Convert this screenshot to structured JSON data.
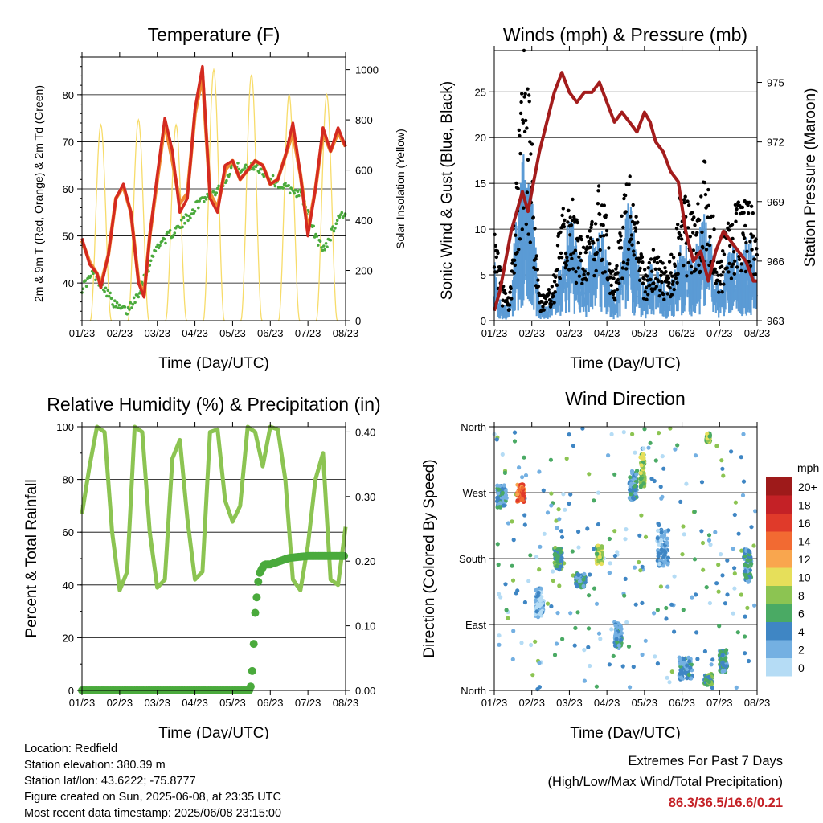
{
  "chart_data": [
    {
      "type": "line",
      "title": "Temperature (F)",
      "xlabel": "Time (Day/UTC)",
      "ylabel": "2m & 9m T (Red, Orange) & 2m Td (Green)",
      "y2label": "Solar Insolation (Yellow)",
      "x_ticks": [
        "01/23",
        "02/23",
        "03/23",
        "04/23",
        "05/23",
        "06/23",
        "07/23",
        "08/23"
      ],
      "xlim": [
        0,
        7
      ],
      "ylim": [
        32,
        88
      ],
      "y_ticks": [
        40,
        50,
        60,
        70,
        80
      ],
      "y2lim": [
        0,
        1050
      ],
      "y2_ticks": [
        0,
        200,
        400,
        600,
        800,
        1000
      ],
      "grid": true,
      "colors": {
        "t2m": "#d42a20",
        "t9m": "#f08a32",
        "td2m": "#4aaa3c",
        "solar": "#f7dc6a"
      },
      "series": [
        {
          "key": "t2m",
          "axis": "left",
          "x": [
            0,
            0.2,
            0.4,
            0.5,
            0.7,
            0.9,
            1.1,
            1.3,
            1.5,
            1.65,
            1.8,
            2.0,
            2.2,
            2.4,
            2.6,
            2.8,
            3.0,
            3.2,
            3.4,
            3.6,
            3.8,
            4.0,
            4.2,
            4.4,
            4.6,
            4.8,
            5.0,
            5.2,
            5.4,
            5.6,
            5.8,
            6.0,
            6.2,
            6.4,
            6.6,
            6.8,
            7.0
          ],
          "values": [
            49.5,
            44,
            42,
            39,
            46,
            58,
            61,
            55,
            40,
            37,
            50,
            63,
            75,
            68,
            55,
            58,
            77,
            86,
            58,
            55,
            65,
            66,
            62,
            64,
            66,
            65,
            61,
            62,
            67,
            74,
            63,
            50,
            60,
            73,
            68,
            73,
            69
          ]
        },
        {
          "key": "t9m",
          "axis": "left",
          "x": [
            0,
            0.2,
            0.4,
            0.5,
            0.7,
            0.9,
            1.1,
            1.3,
            1.5,
            1.65,
            1.8,
            2.0,
            2.2,
            2.4,
            2.6,
            2.8,
            3.0,
            3.2,
            3.4,
            3.6,
            3.8,
            4.0,
            4.2,
            4.4,
            4.6,
            4.8,
            5.0,
            5.2,
            5.4,
            5.6,
            5.8,
            6.0,
            6.2,
            6.4,
            6.6,
            6.8,
            7.0
          ],
          "values": [
            49,
            44.5,
            42,
            39.5,
            46,
            58,
            60.5,
            55,
            40.5,
            37.5,
            50,
            62,
            74,
            66,
            57,
            59,
            76,
            84,
            59,
            56,
            64,
            66,
            62,
            64,
            66,
            65,
            61,
            62,
            67,
            72,
            63,
            51,
            60,
            72,
            68,
            72,
            69
          ]
        },
        {
          "key": "td2m",
          "axis": "left",
          "x": [
            0,
            0.3,
            0.6,
            0.9,
            1.2,
            1.5,
            1.8,
            2.0,
            2.3,
            2.6,
            2.9,
            3.2,
            3.5,
            3.8,
            4.0,
            4.3,
            4.6,
            4.9,
            5.2,
            5.5,
            5.8,
            6.0,
            6.2,
            6.4,
            6.6,
            6.8,
            7.0
          ],
          "values": [
            39,
            42,
            39,
            35,
            34,
            38,
            44,
            48,
            50,
            52,
            55,
            58,
            59,
            62,
            65,
            64,
            65,
            63,
            61,
            60,
            59,
            55,
            50,
            47,
            50,
            54,
            55
          ]
        },
        {
          "key": "solar",
          "axis": "right",
          "peaks_x": [
            0.5,
            1.5,
            2.5,
            3.5,
            4.5,
            5.5,
            6.5
          ],
          "peaks": [
            780,
            800,
            780,
            1000,
            980,
            900,
            900
          ]
        }
      ]
    },
    {
      "type": "scatter",
      "title": "Winds (mph) & Pressure (mb)",
      "xlabel": "Time (Day/UTC)",
      "ylabel": "Sonic Wind & Gust (Blue, Black)",
      "y2label": "Station Pressure (Maroon)",
      "x_ticks": [
        "01/23",
        "02/23",
        "03/23",
        "04/23",
        "05/23",
        "06/23",
        "07/23",
        "08/23"
      ],
      "xlim": [
        0,
        7
      ],
      "ylim": [
        0,
        29.5
      ],
      "y_ticks": [
        0,
        5,
        10,
        15,
        20,
        25
      ],
      "y2lim": [
        963,
        976.6
      ],
      "y2_ticks": [
        963,
        966,
        969,
        972,
        975
      ],
      "grid": true,
      "colors": {
        "wind": "#5b9bd5",
        "gust": "#000000",
        "pressure": "#a31c1c"
      },
      "series": [
        {
          "key": "wind",
          "x": [
            0,
            0.2,
            0.4,
            0.6,
            0.8,
            1.0,
            1.2,
            1.4,
            1.6,
            1.8,
            2.0,
            2.2,
            2.4,
            2.6,
            2.8,
            3.0,
            3.2,
            3.4,
            3.6,
            3.8,
            4.0,
            4.2,
            4.4,
            4.6,
            4.8,
            5.0,
            5.2,
            5.4,
            5.6,
            5.8,
            6.0,
            6.2,
            6.4,
            6.6,
            6.8,
            7.0
          ],
          "values": [
            4,
            1,
            1,
            7,
            13,
            9,
            1,
            1,
            2,
            4,
            7,
            5,
            3,
            5,
            7,
            4,
            1,
            5,
            8,
            4,
            2,
            4,
            3,
            2,
            3,
            6,
            4,
            5,
            7,
            5,
            2,
            4,
            5,
            4,
            6,
            3
          ]
        },
        {
          "key": "gust",
          "x": [
            0,
            0.2,
            0.4,
            0.6,
            0.8,
            1.0,
            1.2,
            1.4,
            1.6,
            1.8,
            2.0,
            2.2,
            2.4,
            2.6,
            2.8,
            3.0,
            3.2,
            3.4,
            3.6,
            3.8,
            4.0,
            4.2,
            4.4,
            4.6,
            4.8,
            5.0,
            5.2,
            5.4,
            5.6,
            5.8,
            6.0,
            6.2,
            6.4,
            6.6,
            6.8,
            7.0
          ],
          "values": [
            9,
            3,
            2,
            12,
            22,
            15,
            2,
            2,
            4,
            9,
            11,
            8,
            6,
            8,
            12,
            8,
            3,
            9,
            13,
            8,
            4,
            6,
            5,
            4,
            6,
            11,
            9,
            9,
            13,
            9,
            5,
            8,
            10,
            9,
            11,
            6
          ]
        },
        {
          "key": "pressure",
          "axis": "right",
          "x": [
            0,
            0.15,
            0.3,
            0.45,
            0.6,
            0.75,
            0.9,
            1.05,
            1.2,
            1.4,
            1.6,
            1.8,
            2.0,
            2.2,
            2.4,
            2.6,
            2.8,
            3.0,
            3.2,
            3.4,
            3.6,
            3.8,
            4.0,
            4.15,
            4.3,
            4.5,
            4.7,
            4.9,
            5.1,
            5.3,
            5.5,
            5.7,
            5.9,
            6.1,
            6.3,
            6.5,
            6.7,
            6.9,
            7.0
          ],
          "values": [
            963.5,
            964.5,
            966,
            967.5,
            968.5,
            969.5,
            968.5,
            970,
            971.5,
            973,
            974.5,
            975.5,
            974.5,
            974,
            974.5,
            974.5,
            975,
            974,
            973,
            973.5,
            973,
            972.5,
            973.5,
            973,
            972,
            971.5,
            970.5,
            970,
            967.5,
            966,
            966.5,
            965,
            966.5,
            967.5,
            967,
            966.5,
            966,
            965,
            965
          ]
        }
      ]
    },
    {
      "type": "line",
      "title": "Relative Humidity (%) & Precipitation (in)",
      "xlabel": "Time (Day/UTC)",
      "ylabel": "Percent & Total Rainfall",
      "x_ticks": [
        "01/23",
        "02/23",
        "03/23",
        "04/23",
        "05/23",
        "06/23",
        "07/23",
        "08/23"
      ],
      "xlim": [
        0,
        7
      ],
      "ylim": [
        0,
        100
      ],
      "y_ticks": [
        0,
        20,
        40,
        60,
        80,
        100
      ],
      "y2lim": [
        0,
        0.408
      ],
      "y2_ticks": [
        "0.00",
        "0.10",
        "0.20",
        "0.30",
        "0.40"
      ],
      "grid": true,
      "colors": {
        "rh": "#8cc452",
        "precip": "#4aaa3c"
      },
      "series": [
        {
          "key": "rh",
          "x": [
            0,
            0.2,
            0.4,
            0.6,
            0.8,
            1.0,
            1.2,
            1.4,
            1.6,
            1.8,
            2.0,
            2.2,
            2.4,
            2.6,
            2.8,
            3.0,
            3.2,
            3.4,
            3.6,
            3.8,
            4.0,
            4.2,
            4.4,
            4.6,
            4.8,
            5.0,
            5.2,
            5.4,
            5.6,
            5.8,
            6.0,
            6.2,
            6.4,
            6.6,
            6.8,
            7.0
          ],
          "values": [
            67,
            85,
            100,
            98,
            60,
            38,
            45,
            100,
            98,
            60,
            39,
            42,
            88,
            95,
            65,
            42,
            45,
            98,
            99,
            72,
            64,
            70,
            100,
            98,
            85,
            100,
            99,
            80,
            42,
            38,
            55,
            80,
            90,
            42,
            40,
            62
          ]
        },
        {
          "key": "precip",
          "axis": "right",
          "x": [
            0,
            4.3,
            4.45,
            4.5,
            4.55,
            4.6,
            4.7,
            4.85,
            5.0,
            5.5,
            6.0,
            6.5,
            7.0
          ],
          "values": [
            0,
            0,
            0,
            0.01,
            0.06,
            0.12,
            0.18,
            0.195,
            0.195,
            0.205,
            0.208,
            0.208,
            0.208
          ]
        }
      ]
    },
    {
      "type": "scatter",
      "title": "Wind Direction",
      "xlabel": "Time (Day/UTC)",
      "ylabel": "Direction (Colored By Speed)",
      "x_ticks": [
        "01/23",
        "02/23",
        "03/23",
        "04/23",
        "05/23",
        "06/23",
        "07/23",
        "08/23"
      ],
      "xlim": [
        0,
        7
      ],
      "ylim": [
        0,
        360
      ],
      "y_ticks": [
        "North",
        "East",
        "South",
        "West",
        "North"
      ],
      "grid": true,
      "legend_title": "mph",
      "legend_labels": [
        "20+",
        "18",
        "16",
        "14",
        "12",
        "10",
        "8",
        "6",
        "4",
        "2",
        "0"
      ],
      "legend_colors": [
        "#9e1a1a",
        "#c42126",
        "#e03a2a",
        "#f26a32",
        "#f9a64e",
        "#e6df5a",
        "#8cc452",
        "#4aaa64",
        "#3f86c4",
        "#74b0e2",
        "#b5dcf5"
      ],
      "clusters": [
        {
          "x": 0.2,
          "dir": 265,
          "dx": 0.25,
          "ddir": 30,
          "speed": 3
        },
        {
          "x": 0.7,
          "dir": 270,
          "dx": 0.18,
          "ddir": 25,
          "speed": 14
        },
        {
          "x": 1.2,
          "dir": 120,
          "dx": 0.2,
          "ddir": 40,
          "speed": 1
        },
        {
          "x": 1.7,
          "dir": 180,
          "dx": 0.2,
          "ddir": 30,
          "speed": 5
        },
        {
          "x": 2.3,
          "dir": 150,
          "dx": 0.25,
          "ddir": 20,
          "speed": 4
        },
        {
          "x": 2.8,
          "dir": 185,
          "dx": 0.15,
          "ddir": 25,
          "speed": 8
        },
        {
          "x": 3.3,
          "dir": 75,
          "dx": 0.18,
          "ddir": 35,
          "speed": 3
        },
        {
          "x": 3.7,
          "dir": 280,
          "dx": 0.2,
          "ddir": 40,
          "speed": 3
        },
        {
          "x": 3.95,
          "dir": 300,
          "dx": 0.12,
          "ddir": 45,
          "speed": 8
        },
        {
          "x": 4.5,
          "dir": 200,
          "dx": 0.3,
          "ddir": 60,
          "speed": 2
        },
        {
          "x": 5.1,
          "dir": 30,
          "dx": 0.35,
          "ddir": 30,
          "speed": 3
        },
        {
          "x": 5.7,
          "dir": 15,
          "dx": 0.2,
          "ddir": 15,
          "speed": 6
        },
        {
          "x": 5.7,
          "dir": 345,
          "dx": 0.1,
          "ddir": 12,
          "speed": 7
        },
        {
          "x": 6.1,
          "dir": 40,
          "dx": 0.2,
          "ddir": 30,
          "speed": 4
        },
        {
          "x": 6.75,
          "dir": 170,
          "dx": 0.2,
          "ddir": 45,
          "speed": 4
        }
      ]
    }
  ],
  "info": {
    "location": "Location: Redfield",
    "elevation": "Station elevation: 380.39 m",
    "latlon": "Station lat/lon: 43.6222; -75.8777",
    "created": "Figure created on Sun, 2025-06-08, at 23:35 UTC",
    "recent": "Most recent data timestamp: 2025/06/08 23:15:00"
  },
  "extremes": {
    "title": "Extremes For Past 7 Days",
    "subtitle": "(High/Low/Max Wind/Total Precipitation)",
    "values": "86.3/36.5/16.6/0.21"
  }
}
